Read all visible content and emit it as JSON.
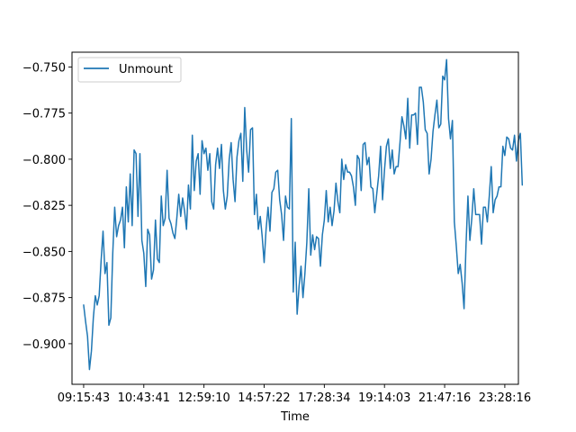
{
  "chart_data": {
    "type": "line",
    "title": "",
    "xlabel": "Time",
    "ylabel": "",
    "xlim": [
      -6,
      224
    ],
    "ylim": [
      -0.922,
      -0.742
    ],
    "grid": false,
    "legend": {
      "location": "upper-left",
      "entries": [
        "Unmount"
      ]
    },
    "x_ticks": [
      {
        "pos": 0,
        "label": "09:15:43"
      },
      {
        "pos": 31,
        "label": "10:43:41"
      },
      {
        "pos": 62,
        "label": "12:59:10"
      },
      {
        "pos": 93,
        "label": "14:57:22"
      },
      {
        "pos": 124,
        "label": "17:28:34"
      },
      {
        "pos": 155,
        "label": "19:14:03"
      },
      {
        "pos": 186,
        "label": "21:47:16"
      },
      {
        "pos": 217,
        "label": "23:28:16"
      }
    ],
    "y_ticks": [
      {
        "value": -0.9,
        "label": "−0.900"
      },
      {
        "value": -0.875,
        "label": "−0.875"
      },
      {
        "value": -0.85,
        "label": "−0.850"
      },
      {
        "value": -0.825,
        "label": "−0.825"
      },
      {
        "value": -0.8,
        "label": "−0.800"
      },
      {
        "value": -0.775,
        "label": "−0.775"
      },
      {
        "value": -0.75,
        "label": "−0.750"
      }
    ],
    "series": [
      {
        "name": "Unmount",
        "color": "#1f77b4",
        "values": [
          -0.879,
          -0.888,
          -0.896,
          -0.914,
          -0.904,
          -0.886,
          -0.874,
          -0.879,
          -0.874,
          -0.855,
          -0.839,
          -0.862,
          -0.856,
          -0.89,
          -0.886,
          -0.851,
          -0.826,
          -0.842,
          -0.836,
          -0.833,
          -0.826,
          -0.848,
          -0.815,
          -0.834,
          -0.808,
          -0.836,
          -0.795,
          -0.797,
          -0.831,
          -0.797,
          -0.844,
          -0.851,
          -0.869,
          -0.838,
          -0.841,
          -0.865,
          -0.86,
          -0.833,
          -0.854,
          -0.856,
          -0.82,
          -0.836,
          -0.832,
          -0.806,
          -0.832,
          -0.835,
          -0.84,
          -0.843,
          -0.832,
          -0.819,
          -0.831,
          -0.821,
          -0.828,
          -0.838,
          -0.814,
          -0.827,
          -0.787,
          -0.817,
          -0.801,
          -0.797,
          -0.819,
          -0.79,
          -0.797,
          -0.794,
          -0.806,
          -0.797,
          -0.823,
          -0.827,
          -0.803,
          -0.794,
          -0.805,
          -0.792,
          -0.817,
          -0.827,
          -0.82,
          -0.8,
          -0.791,
          -0.811,
          -0.823,
          -0.799,
          -0.79,
          -0.786,
          -0.812,
          -0.772,
          -0.795,
          -0.807,
          -0.784,
          -0.783,
          -0.83,
          -0.819,
          -0.838,
          -0.831,
          -0.842,
          -0.856,
          -0.838,
          -0.826,
          -0.839,
          -0.818,
          -0.816,
          -0.807,
          -0.806,
          -0.822,
          -0.83,
          -0.844,
          -0.82,
          -0.826,
          -0.827,
          -0.778,
          -0.872,
          -0.845,
          -0.884,
          -0.869,
          -0.858,
          -0.875,
          -0.862,
          -0.845,
          -0.816,
          -0.852,
          -0.841,
          -0.849,
          -0.842,
          -0.843,
          -0.858,
          -0.841,
          -0.833,
          -0.817,
          -0.834,
          -0.826,
          -0.836,
          -0.828,
          -0.813,
          -0.823,
          -0.829,
          -0.8,
          -0.811,
          -0.803,
          -0.807,
          -0.807,
          -0.809,
          -0.815,
          -0.825,
          -0.798,
          -0.8,
          -0.817,
          -0.792,
          -0.791,
          -0.803,
          -0.799,
          -0.815,
          -0.816,
          -0.829,
          -0.819,
          -0.809,
          -0.793,
          -0.822,
          -0.806,
          -0.793,
          -0.789,
          -0.805,
          -0.795,
          -0.808,
          -0.804,
          -0.804,
          -0.791,
          -0.777,
          -0.782,
          -0.789,
          -0.767,
          -0.794,
          -0.776,
          -0.776,
          -0.775,
          -0.792,
          -0.761,
          -0.761,
          -0.769,
          -0.784,
          -0.786,
          -0.808,
          -0.8,
          -0.785,
          -0.776,
          -0.768,
          -0.783,
          -0.781,
          -0.755,
          -0.757,
          -0.746,
          -0.778,
          -0.789,
          -0.779,
          -0.834,
          -0.847,
          -0.862,
          -0.857,
          -0.867,
          -0.881,
          -0.847,
          -0.82,
          -0.844,
          -0.832,
          -0.816,
          -0.83,
          -0.83,
          -0.83,
          -0.846,
          -0.826,
          -0.826,
          -0.834,
          -0.82,
          -0.804,
          -0.829,
          -0.822,
          -0.82,
          -0.815,
          -0.815,
          -0.793,
          -0.798,
          -0.788,
          -0.789,
          -0.794,
          -0.795,
          -0.787,
          -0.801,
          -0.79,
          -0.786,
          -0.814
        ]
      }
    ]
  }
}
